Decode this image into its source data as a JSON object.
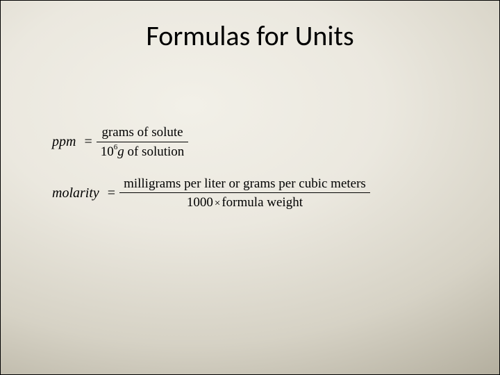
{
  "slide": {
    "title": "Formulas for Units",
    "background": {
      "type": "radial-gradient",
      "center": "38% 28%",
      "stops": [
        "#f2f0e8",
        "#ebe8df",
        "#d6d2c5",
        "#b5b0a0",
        "#8f8a7a"
      ]
    },
    "title_style": {
      "font_family": "Calibri",
      "font_size_pt": 30,
      "color": "#000000",
      "weight": "normal",
      "align": "center"
    },
    "formula_style": {
      "font_family": "Times New Roman",
      "font_size_pt": 15,
      "color": "#000000",
      "lhs_italic": true
    },
    "formulas": [
      {
        "lhs": "ppm",
        "numerator": "grams of solute",
        "denom_prefix": "10",
        "denom_exp": "6",
        "denom_mid": "g",
        "denom_suffix": " of solution"
      },
      {
        "lhs": "molarity",
        "numerator": "milligrams per liter or grams per cubic meters",
        "denom_prefix": "1000",
        "denom_times": "×",
        "denom_suffix": "formula weight"
      }
    ]
  }
}
